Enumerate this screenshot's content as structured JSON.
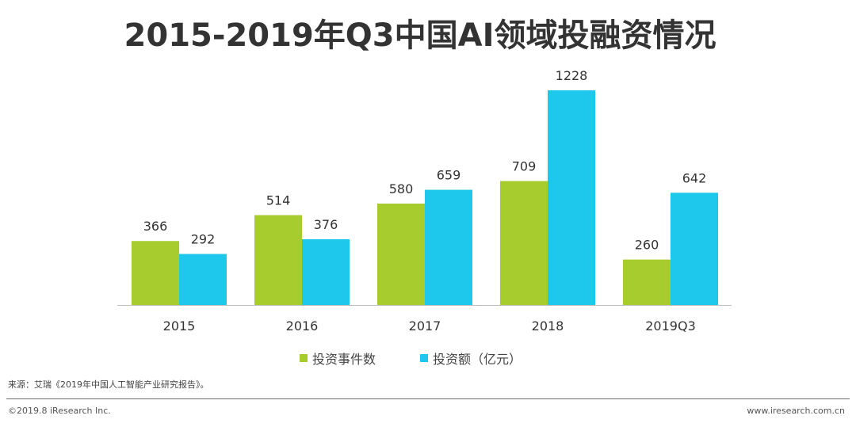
{
  "page": {
    "title": "2015-2019年Q3中国AI领域投融资情况",
    "source": "来源：艾瑞《2019年中国人工智能产业研究报告》。",
    "copyright": "©2019.8 iResearch Inc.",
    "website": "www.iresearch.com.cn"
  },
  "chart_data": {
    "type": "bar",
    "title": "2015-2019年Q3中国AI领域投融资情况",
    "categories": [
      "2015",
      "2016",
      "2017",
      "2018",
      "2019Q3"
    ],
    "series": [
      {
        "name": "投资事件数",
        "color": "#a6cc2e",
        "values": [
          366,
          514,
          580,
          709,
          260
        ]
      },
      {
        "name": "投资额（亿元）",
        "color": "#1ec8ec",
        "values": [
          292,
          376,
          659,
          1228,
          642
        ]
      }
    ],
    "xlabel": "",
    "ylabel": "",
    "ylim": [
      0,
      1228
    ],
    "grid": false,
    "legend_position": "bottom"
  }
}
